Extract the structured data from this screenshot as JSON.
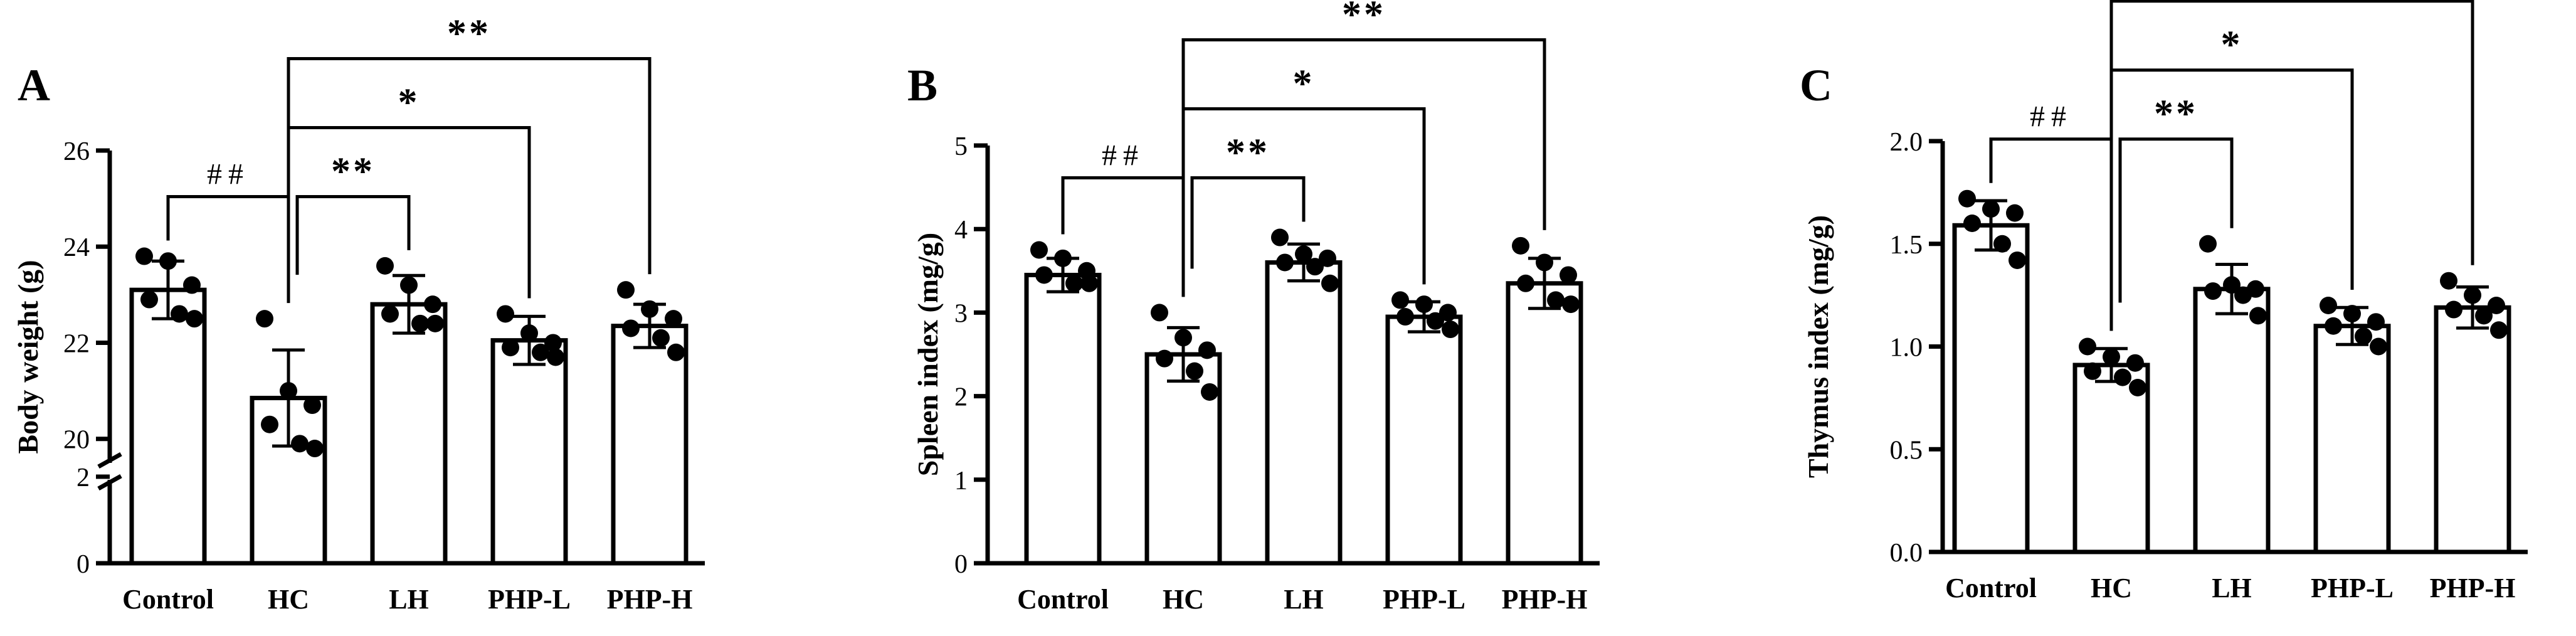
{
  "chart_data": [
    {
      "panel_label": "A",
      "type": "bar",
      "ylabel": "Body weight (g)",
      "categories": [
        "Control",
        "HC",
        "LH",
        "PHP-L",
        "PHP-H"
      ],
      "values": [
        23.1,
        20.85,
        22.8,
        22.05,
        22.35
      ],
      "errors": [
        0.6,
        1.0,
        0.6,
        0.5,
        0.45
      ],
      "points": [
        [
          23.8,
          23.7,
          23.2,
          22.9,
          22.6,
          22.5
        ],
        [
          22.5,
          21.0,
          20.7,
          20.3,
          19.9,
          19.8
        ],
        [
          23.6,
          23.2,
          22.8,
          22.6,
          22.4,
          22.4
        ],
        [
          22.6,
          22.2,
          22.0,
          21.9,
          21.8,
          21.7
        ],
        [
          23.1,
          22.7,
          22.5,
          22.3,
          22.1,
          21.8
        ]
      ],
      "y_axis": {
        "segments": [
          {
            "range": [
              0,
              2
            ],
            "ticks": [
              0,
              2
            ],
            "tick_labels": [
              "0",
              "2"
            ]
          },
          {
            "range": [
              19.5,
              26
            ],
            "ticks": [
              20,
              22,
              24,
              26
            ],
            "tick_labels": [
              "20",
              "22",
              "24",
              "26"
            ]
          }
        ],
        "broken": true
      },
      "significance": [
        {
          "from": "Control",
          "to": "HC",
          "label": "##"
        },
        {
          "from": "HC",
          "to": "LH",
          "label": "**"
        },
        {
          "from": "HC",
          "to": "PHP-L",
          "label": "*"
        },
        {
          "from": "HC",
          "to": "PHP-H",
          "label": "**"
        }
      ]
    },
    {
      "panel_label": "B",
      "type": "bar",
      "ylabel": "Spleen index (mg/g)",
      "categories": [
        "Control",
        "HC",
        "LH",
        "PHP-L",
        "PHP-H"
      ],
      "values": [
        3.45,
        2.5,
        3.6,
        2.95,
        3.35
      ],
      "errors": [
        0.2,
        0.32,
        0.22,
        0.18,
        0.3
      ],
      "points": [
        [
          3.75,
          3.65,
          3.5,
          3.45,
          3.35,
          3.35
        ],
        [
          3.0,
          2.7,
          2.55,
          2.45,
          2.3,
          2.05
        ],
        [
          3.9,
          3.7,
          3.65,
          3.6,
          3.55,
          3.35
        ],
        [
          3.15,
          3.1,
          3.0,
          2.95,
          2.9,
          2.8
        ],
        [
          3.8,
          3.6,
          3.45,
          3.35,
          3.15,
          3.1
        ]
      ],
      "ylim": [
        0,
        5
      ],
      "ticks": [
        0,
        1,
        2,
        3,
        4,
        5
      ],
      "significance": [
        {
          "from": "Control",
          "to": "HC",
          "label": "##"
        },
        {
          "from": "HC",
          "to": "LH",
          "label": "**"
        },
        {
          "from": "HC",
          "to": "PHP-L",
          "label": "*"
        },
        {
          "from": "HC",
          "to": "PHP-H",
          "label": "**"
        }
      ]
    },
    {
      "panel_label": "C",
      "type": "bar",
      "ylabel": "Thymus index (mg/g)",
      "categories": [
        "Control",
        "HC",
        "LH",
        "PHP-L",
        "PHP-H"
      ],
      "values": [
        1.59,
        0.91,
        1.28,
        1.1,
        1.19
      ],
      "errors": [
        0.12,
        0.08,
        0.12,
        0.09,
        0.1
      ],
      "points": [
        [
          1.72,
          1.67,
          1.65,
          1.6,
          1.5,
          1.42
        ],
        [
          1.0,
          0.95,
          0.92,
          0.88,
          0.85,
          0.8
        ],
        [
          1.5,
          1.3,
          1.28,
          1.27,
          1.25,
          1.15
        ],
        [
          1.2,
          1.16,
          1.12,
          1.1,
          1.05,
          1.0
        ],
        [
          1.32,
          1.25,
          1.2,
          1.18,
          1.15,
          1.08
        ]
      ],
      "ylim": [
        0,
        2
      ],
      "ticks": [
        0,
        0.5,
        1.0,
        1.5,
        2.0
      ],
      "tick_labels": [
        "0.0",
        "0.5",
        "1.0",
        "1.5",
        "2.0"
      ],
      "significance": [
        {
          "from": "Control",
          "to": "HC",
          "label": "##"
        },
        {
          "from": "HC",
          "to": "LH",
          "label": "**"
        },
        {
          "from": "HC",
          "to": "PHP-L",
          "label": "*"
        },
        {
          "from": "HC",
          "to": "PHP-H",
          "label": "*"
        }
      ]
    }
  ]
}
